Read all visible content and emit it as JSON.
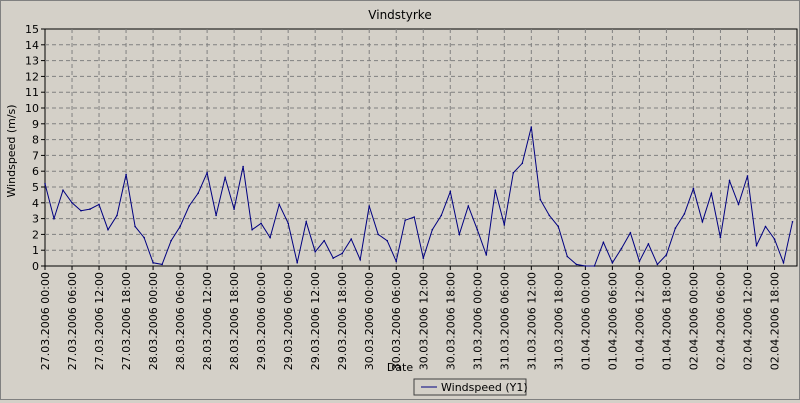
{
  "chart_data": {
    "type": "line",
    "title": "Vindstyrke",
    "xlabel": "Date",
    "ylabel": "Windspeed (m/s)",
    "ylim": [
      0,
      15
    ],
    "yticks": [
      0,
      1,
      2,
      3,
      4,
      5,
      6,
      7,
      8,
      9,
      10,
      11,
      12,
      13,
      14,
      15
    ],
    "xlim": [
      "27.03.2006 00:00",
      "02.04.2006 23:00"
    ],
    "x_tick_labels": [
      "27.03.2006 00:00",
      "27.03.2006 06:00",
      "27.03.2006 12:00",
      "27.03.2006 18:00",
      "28.03.2006 00:00",
      "28.03.2006 06:00",
      "28.03.2006 12:00",
      "28.03.2006 18:00",
      "29.03.2006 00:00",
      "29.03.2006 06:00",
      "29.03.2006 12:00",
      "29.03.2006 18:00",
      "30.03.2006 00:00",
      "30.03.2006 06:00",
      "30.03.2006 12:00",
      "30.03.2006 18:00",
      "31.03.2006 00:00",
      "31.03.2006 06:00",
      "31.03.2006 12:00",
      "31.03.2006 18:00",
      "01.04.2006 00:00",
      "01.04.2006 06:00",
      "01.04.2006 12:00",
      "01.04.2006 18:00",
      "02.04.2006 00:00",
      "02.04.2006 06:00",
      "02.04.2006 12:00",
      "02.04.2006 18:00"
    ],
    "grid": true,
    "legend_position": "bottom-center",
    "series": [
      {
        "name": "Windspeed (Y1)",
        "color": "#000080",
        "x": [
          "27.03.2006 00:00",
          "27.03.2006 02:00",
          "27.03.2006 04:00",
          "27.03.2006 06:00",
          "27.03.2006 08:00",
          "27.03.2006 10:00",
          "27.03.2006 12:00",
          "27.03.2006 14:00",
          "27.03.2006 16:00",
          "27.03.2006 18:00",
          "27.03.2006 20:00",
          "27.03.2006 22:00",
          "28.03.2006 00:00",
          "28.03.2006 02:00",
          "28.03.2006 04:00",
          "28.03.2006 06:00",
          "28.03.2006 08:00",
          "28.03.2006 10:00",
          "28.03.2006 12:00",
          "28.03.2006 14:00",
          "28.03.2006 16:00",
          "28.03.2006 18:00",
          "28.03.2006 20:00",
          "28.03.2006 22:00",
          "29.03.2006 00:00",
          "29.03.2006 02:00",
          "29.03.2006 04:00",
          "29.03.2006 06:00",
          "29.03.2006 08:00",
          "29.03.2006 10:00",
          "29.03.2006 12:00",
          "29.03.2006 14:00",
          "29.03.2006 16:00",
          "29.03.2006 18:00",
          "29.03.2006 20:00",
          "29.03.2006 22:00",
          "30.03.2006 00:00",
          "30.03.2006 02:00",
          "30.03.2006 04:00",
          "30.03.2006 06:00",
          "30.03.2006 08:00",
          "30.03.2006 10:00",
          "30.03.2006 12:00",
          "30.03.2006 14:00",
          "30.03.2006 16:00",
          "30.03.2006 18:00",
          "30.03.2006 20:00",
          "30.03.2006 22:00",
          "31.03.2006 00:00",
          "31.03.2006 02:00",
          "31.03.2006 04:00",
          "31.03.2006 06:00",
          "31.03.2006 08:00",
          "31.03.2006 10:00",
          "31.03.2006 12:00",
          "31.03.2006 14:00",
          "31.03.2006 16:00",
          "31.03.2006 18:00",
          "31.03.2006 20:00",
          "31.03.2006 22:00",
          "01.04.2006 00:00",
          "01.04.2006 02:00",
          "01.04.2006 04:00",
          "01.04.2006 06:00",
          "01.04.2006 08:00",
          "01.04.2006 10:00",
          "01.04.2006 12:00",
          "01.04.2006 14:00",
          "01.04.2006 16:00",
          "01.04.2006 18:00",
          "01.04.2006 20:00",
          "01.04.2006 22:00",
          "02.04.2006 00:00",
          "02.04.2006 02:00",
          "02.04.2006 04:00",
          "02.04.2006 06:00",
          "02.04.2006 08:00",
          "02.04.2006 10:00",
          "02.04.2006 12:00",
          "02.04.2006 14:00",
          "02.04.2006 16:00",
          "02.04.2006 18:00",
          "02.04.2006 20:00",
          "02.04.2006 22:00"
        ],
        "values": [
          5.2,
          3.0,
          4.8,
          4.0,
          3.5,
          3.6,
          3.9,
          2.3,
          3.2,
          5.8,
          2.5,
          1.8,
          0.2,
          0.1,
          1.6,
          2.5,
          3.8,
          4.6,
          5.9,
          3.2,
          5.6,
          3.6,
          6.3,
          2.3,
          2.7,
          1.8,
          3.9,
          2.7,
          0.2,
          2.8,
          0.9,
          1.6,
          0.5,
          0.8,
          1.7,
          0.4,
          3.8,
          2.0,
          1.6,
          0.3,
          2.9,
          3.1,
          0.5,
          2.3,
          3.2,
          4.7,
          2.0,
          3.8,
          2.3,
          0.7,
          4.8,
          2.6,
          5.9,
          6.5,
          8.8,
          4.2,
          3.2,
          2.5,
          0.6,
          0.1,
          0.0,
          0.0,
          1.5,
          0.2,
          1.1,
          2.1,
          0.3,
          1.4,
          0.1,
          0.7,
          2.4,
          3.3,
          4.9,
          2.8,
          4.6,
          1.8,
          5.4,
          3.9,
          5.7,
          1.3,
          2.5,
          1.7,
          0.2,
          2.8
        ]
      }
    ]
  }
}
